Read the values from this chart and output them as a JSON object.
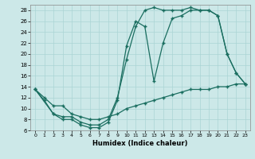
{
  "xlabel": "Humidex (Indice chaleur)",
  "bg_color": "#cce8e8",
  "grid_color": "#aad4d4",
  "line_color": "#1a6e60",
  "xlim": [
    -0.5,
    23.5
  ],
  "ylim": [
    6,
    29
  ],
  "xticks": [
    0,
    1,
    2,
    3,
    4,
    5,
    6,
    7,
    8,
    9,
    10,
    11,
    12,
    13,
    14,
    15,
    16,
    17,
    18,
    19,
    20,
    21,
    22,
    23
  ],
  "yticks": [
    6,
    8,
    10,
    12,
    14,
    16,
    18,
    20,
    22,
    24,
    26,
    28
  ],
  "series1_x": [
    0,
    1,
    2,
    3,
    4,
    5,
    6,
    7,
    8,
    9,
    10,
    11,
    12,
    13,
    14,
    15,
    16,
    17,
    18,
    19,
    20,
    21,
    22,
    23
  ],
  "series1_y": [
    13.5,
    11.5,
    9,
    8,
    8,
    7,
    6.5,
    6.5,
    7.5,
    11.5,
    21.5,
    26,
    25,
    15,
    22,
    26.5,
    27,
    28,
    28,
    28,
    27,
    20,
    16.5,
    14.5
  ],
  "series2_x": [
    0,
    1,
    2,
    3,
    4,
    5,
    6,
    7,
    8,
    9,
    10,
    11,
    12,
    13,
    14,
    15,
    16,
    17,
    18,
    19,
    20,
    21,
    22,
    23
  ],
  "series2_y": [
    13.5,
    12,
    10.5,
    10.5,
    9,
    8.5,
    8,
    8,
    8.5,
    9,
    10,
    10.5,
    11,
    11.5,
    12,
    12.5,
    13,
    13.5,
    13.5,
    13.5,
    14,
    14,
    14.5,
    14.5
  ],
  "series3_x": [
    0,
    2,
    3,
    4,
    5,
    6,
    7,
    8,
    9,
    10,
    11,
    12,
    13,
    14,
    15,
    16,
    17,
    18,
    19,
    20,
    21,
    22,
    23
  ],
  "series3_y": [
    13.5,
    9,
    8.5,
    8.5,
    7.5,
    7,
    7,
    8,
    12,
    19,
    25,
    28,
    28.5,
    28,
    28,
    28,
    28.5,
    28,
    28,
    27,
    20,
    16.5,
    14.5
  ]
}
